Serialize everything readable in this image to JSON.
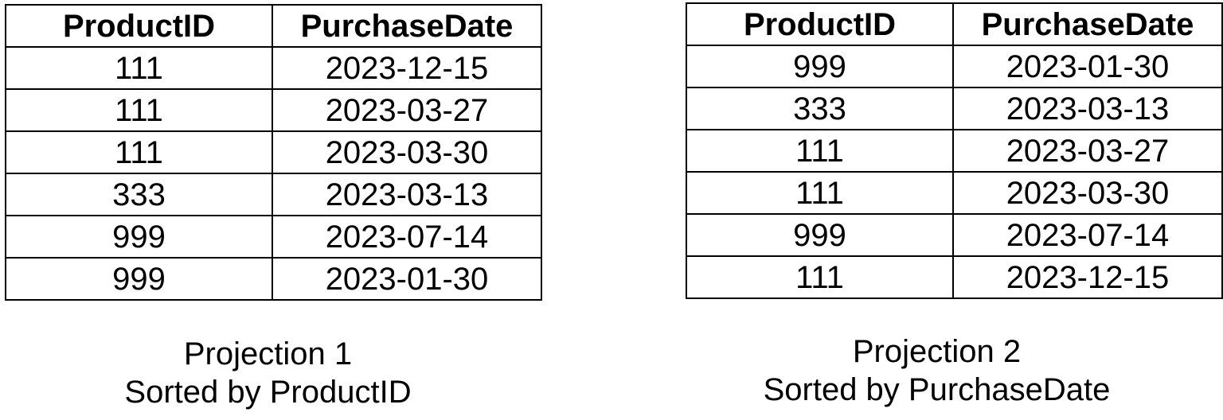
{
  "projections": [
    {
      "headers": {
        "product_id": "ProductID",
        "purchase_date": "PurchaseDate"
      },
      "rows": [
        {
          "product_id": "111",
          "purchase_date": "2023-12-15"
        },
        {
          "product_id": "111",
          "purchase_date": "2023-03-27"
        },
        {
          "product_id": "111",
          "purchase_date": "2023-03-30"
        },
        {
          "product_id": "333",
          "purchase_date": "2023-03-13"
        },
        {
          "product_id": "999",
          "purchase_date": "2023-07-14"
        },
        {
          "product_id": "999",
          "purchase_date": "2023-01-30"
        }
      ],
      "caption": {
        "title": "Projection 1",
        "subtitle": "Sorted by ProductID"
      }
    },
    {
      "headers": {
        "product_id": "ProductID",
        "purchase_date": "PurchaseDate"
      },
      "rows": [
        {
          "product_id": "999",
          "purchase_date": "2023-01-30"
        },
        {
          "product_id": "333",
          "purchase_date": "2023-03-13"
        },
        {
          "product_id": "111",
          "purchase_date": "2023-03-27"
        },
        {
          "product_id": "111",
          "purchase_date": "2023-03-30"
        },
        {
          "product_id": "999",
          "purchase_date": "2023-07-14"
        },
        {
          "product_id": "111",
          "purchase_date": "2023-12-15"
        }
      ],
      "caption": {
        "title": "Projection 2",
        "subtitle": "Sorted by PurchaseDate"
      }
    }
  ]
}
